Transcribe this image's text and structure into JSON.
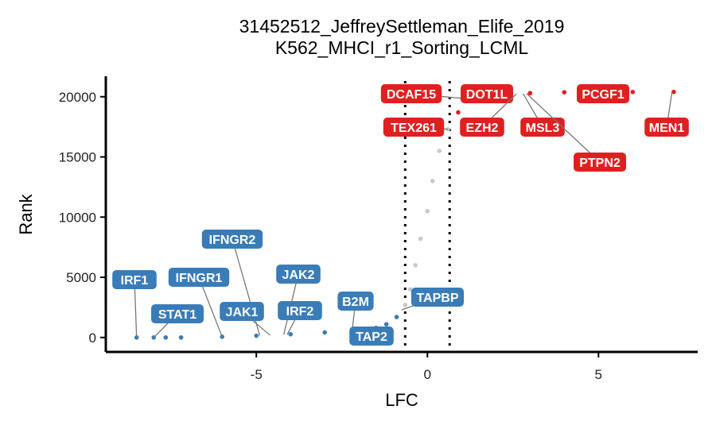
{
  "chart_data": {
    "type": "scatter",
    "title": "31452512_JeffreySettleman_Elife_2019",
    "subtitle": "K562_MHCI_r1_Sorting_LCML",
    "xlabel": "LFC",
    "ylabel": "Rank",
    "xlim": [
      -9.4,
      7.9
    ],
    "ylim": [
      -1200,
      21700
    ],
    "x_ticks": [
      -5,
      0,
      5
    ],
    "x_tick_labels": [
      "-5",
      "0",
      "5"
    ],
    "y_ticks": [
      0,
      5000,
      10000,
      15000,
      20000
    ],
    "y_tick_labels": [
      "0",
      "5000",
      "10000",
      "15000",
      "20000"
    ],
    "thresholds": [
      -0.65,
      0.65
    ],
    "total_genes": 20400,
    "grid": false,
    "legend": "none",
    "colors": {
      "negative": "#3a7cb8",
      "neutral": "#c8c8c8",
      "positive": "#e02020"
    },
    "series": [
      {
        "values_description": "ranked genes",
        "points": [
          {
            "x": -8.5,
            "y": 0
          },
          {
            "x": -8.0,
            "y": 1
          },
          {
            "x": -7.65,
            "y": 2
          },
          {
            "x": -7.2,
            "y": 3
          },
          {
            "x": -6.0,
            "y": 60
          },
          {
            "x": -5.0,
            "y": 150
          },
          {
            "x": -4.0,
            "y": 270
          },
          {
            "x": -3.0,
            "y": 420
          },
          {
            "x": -2.0,
            "y": 630
          },
          {
            "x": -1.5,
            "y": 800
          },
          {
            "x": -1.2,
            "y": 1100
          },
          {
            "x": -0.9,
            "y": 1700
          },
          {
            "x": -0.65,
            "y": 2700
          },
          {
            "x": -0.5,
            "y": 4000
          },
          {
            "x": -0.35,
            "y": 6000
          },
          {
            "x": -0.2,
            "y": 8200
          },
          {
            "x": 0.0,
            "y": 10500
          },
          {
            "x": 0.15,
            "y": 13000
          },
          {
            "x": 0.35,
            "y": 15500
          },
          {
            "x": 0.6,
            "y": 17300
          },
          {
            "x": 0.9,
            "y": 18700
          },
          {
            "x": 1.3,
            "y": 19700
          },
          {
            "x": 2.0,
            "y": 20150
          },
          {
            "x": 3.0,
            "y": 20300
          },
          {
            "x": 4.0,
            "y": 20370
          },
          {
            "x": 5.0,
            "y": 20390
          },
          {
            "x": 6.0,
            "y": 20397
          },
          {
            "x": 7.2,
            "y": 20400
          }
        ]
      }
    ],
    "annotations": [
      {
        "label": "IRF1",
        "x": -8.5,
        "y": 0,
        "side": "negative"
      },
      {
        "label": "STAT1",
        "x": -8.0,
        "y": 1,
        "side": "negative"
      },
      {
        "label": "IFNGR1",
        "x": -6.0,
        "y": 60,
        "side": "negative"
      },
      {
        "label": "IFNGR2",
        "x": -4.9,
        "y": 160,
        "side": "negative"
      },
      {
        "label": "JAK1",
        "x": -4.6,
        "y": 190,
        "side": "negative"
      },
      {
        "label": "JAK2",
        "x": -4.2,
        "y": 240,
        "side": "negative"
      },
      {
        "label": "IRF2",
        "x": -4.1,
        "y": 250,
        "side": "negative"
      },
      {
        "label": "B2M",
        "x": -2.2,
        "y": 580,
        "side": "negative"
      },
      {
        "label": "TAP2",
        "x": -1.9,
        "y": 650,
        "side": "negative"
      },
      {
        "label": "TAPBP",
        "x": -0.75,
        "y": 2300,
        "side": "negative"
      },
      {
        "label": "DCAF15",
        "x": 1.3,
        "y": 19800,
        "side": "positive"
      },
      {
        "label": "TEX261",
        "x": 0.6,
        "y": 17300,
        "side": "positive"
      },
      {
        "label": "DOT1L",
        "x": 2.3,
        "y": 20200,
        "side": "positive"
      },
      {
        "label": "EZH2",
        "x": 2.6,
        "y": 20230,
        "side": "positive"
      },
      {
        "label": "MSL3",
        "x": 2.8,
        "y": 20250,
        "side": "positive"
      },
      {
        "label": "PTPN2",
        "x": 2.9,
        "y": 20260,
        "side": "positive"
      },
      {
        "label": "PCGF1",
        "x": 4.5,
        "y": 20380,
        "side": "positive"
      },
      {
        "label": "MEN1",
        "x": 7.15,
        "y": 20400,
        "side": "positive"
      }
    ]
  }
}
